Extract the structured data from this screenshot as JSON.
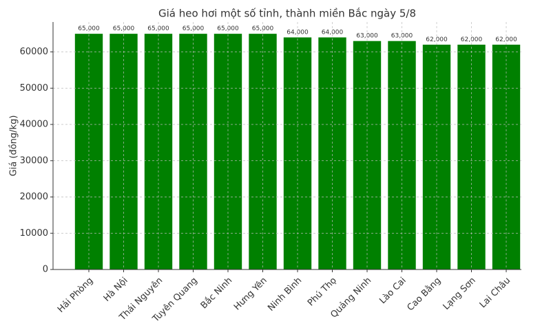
{
  "chart_data": {
    "type": "bar",
    "title": "Giá heo hơi một số tỉnh, thành miền Bắc ngày 5/8",
    "y_label": "Giá (đồng/kg)",
    "categories": [
      "Hải Phòng",
      "Hà Nội",
      "Thái Nguyên",
      "Tuyên Quang",
      "Bắc Ninh",
      "Hưng Yên",
      "Ninh Bình",
      "Phú Thọ",
      "Quảng Ninh",
      "Lào Cai",
      "Cao Bằng",
      "Lạng Sơn",
      "Lai Châu"
    ],
    "values": [
      65000,
      65000,
      65000,
      65000,
      65000,
      65000,
      64000,
      64000,
      63000,
      63000,
      62000,
      62000,
      62000
    ],
    "value_labels": [
      "65,000",
      "65,000",
      "65,000",
      "65,000",
      "65,000",
      "65,000",
      "64,000",
      "64,000",
      "63,000",
      "63,000",
      "62,000",
      "62,000",
      "62,000"
    ],
    "color": "#008000",
    "ylim": [
      0,
      68250
    ],
    "yticks": [
      0,
      10000,
      20000,
      30000,
      40000,
      50000,
      60000
    ],
    "grid": true
  }
}
